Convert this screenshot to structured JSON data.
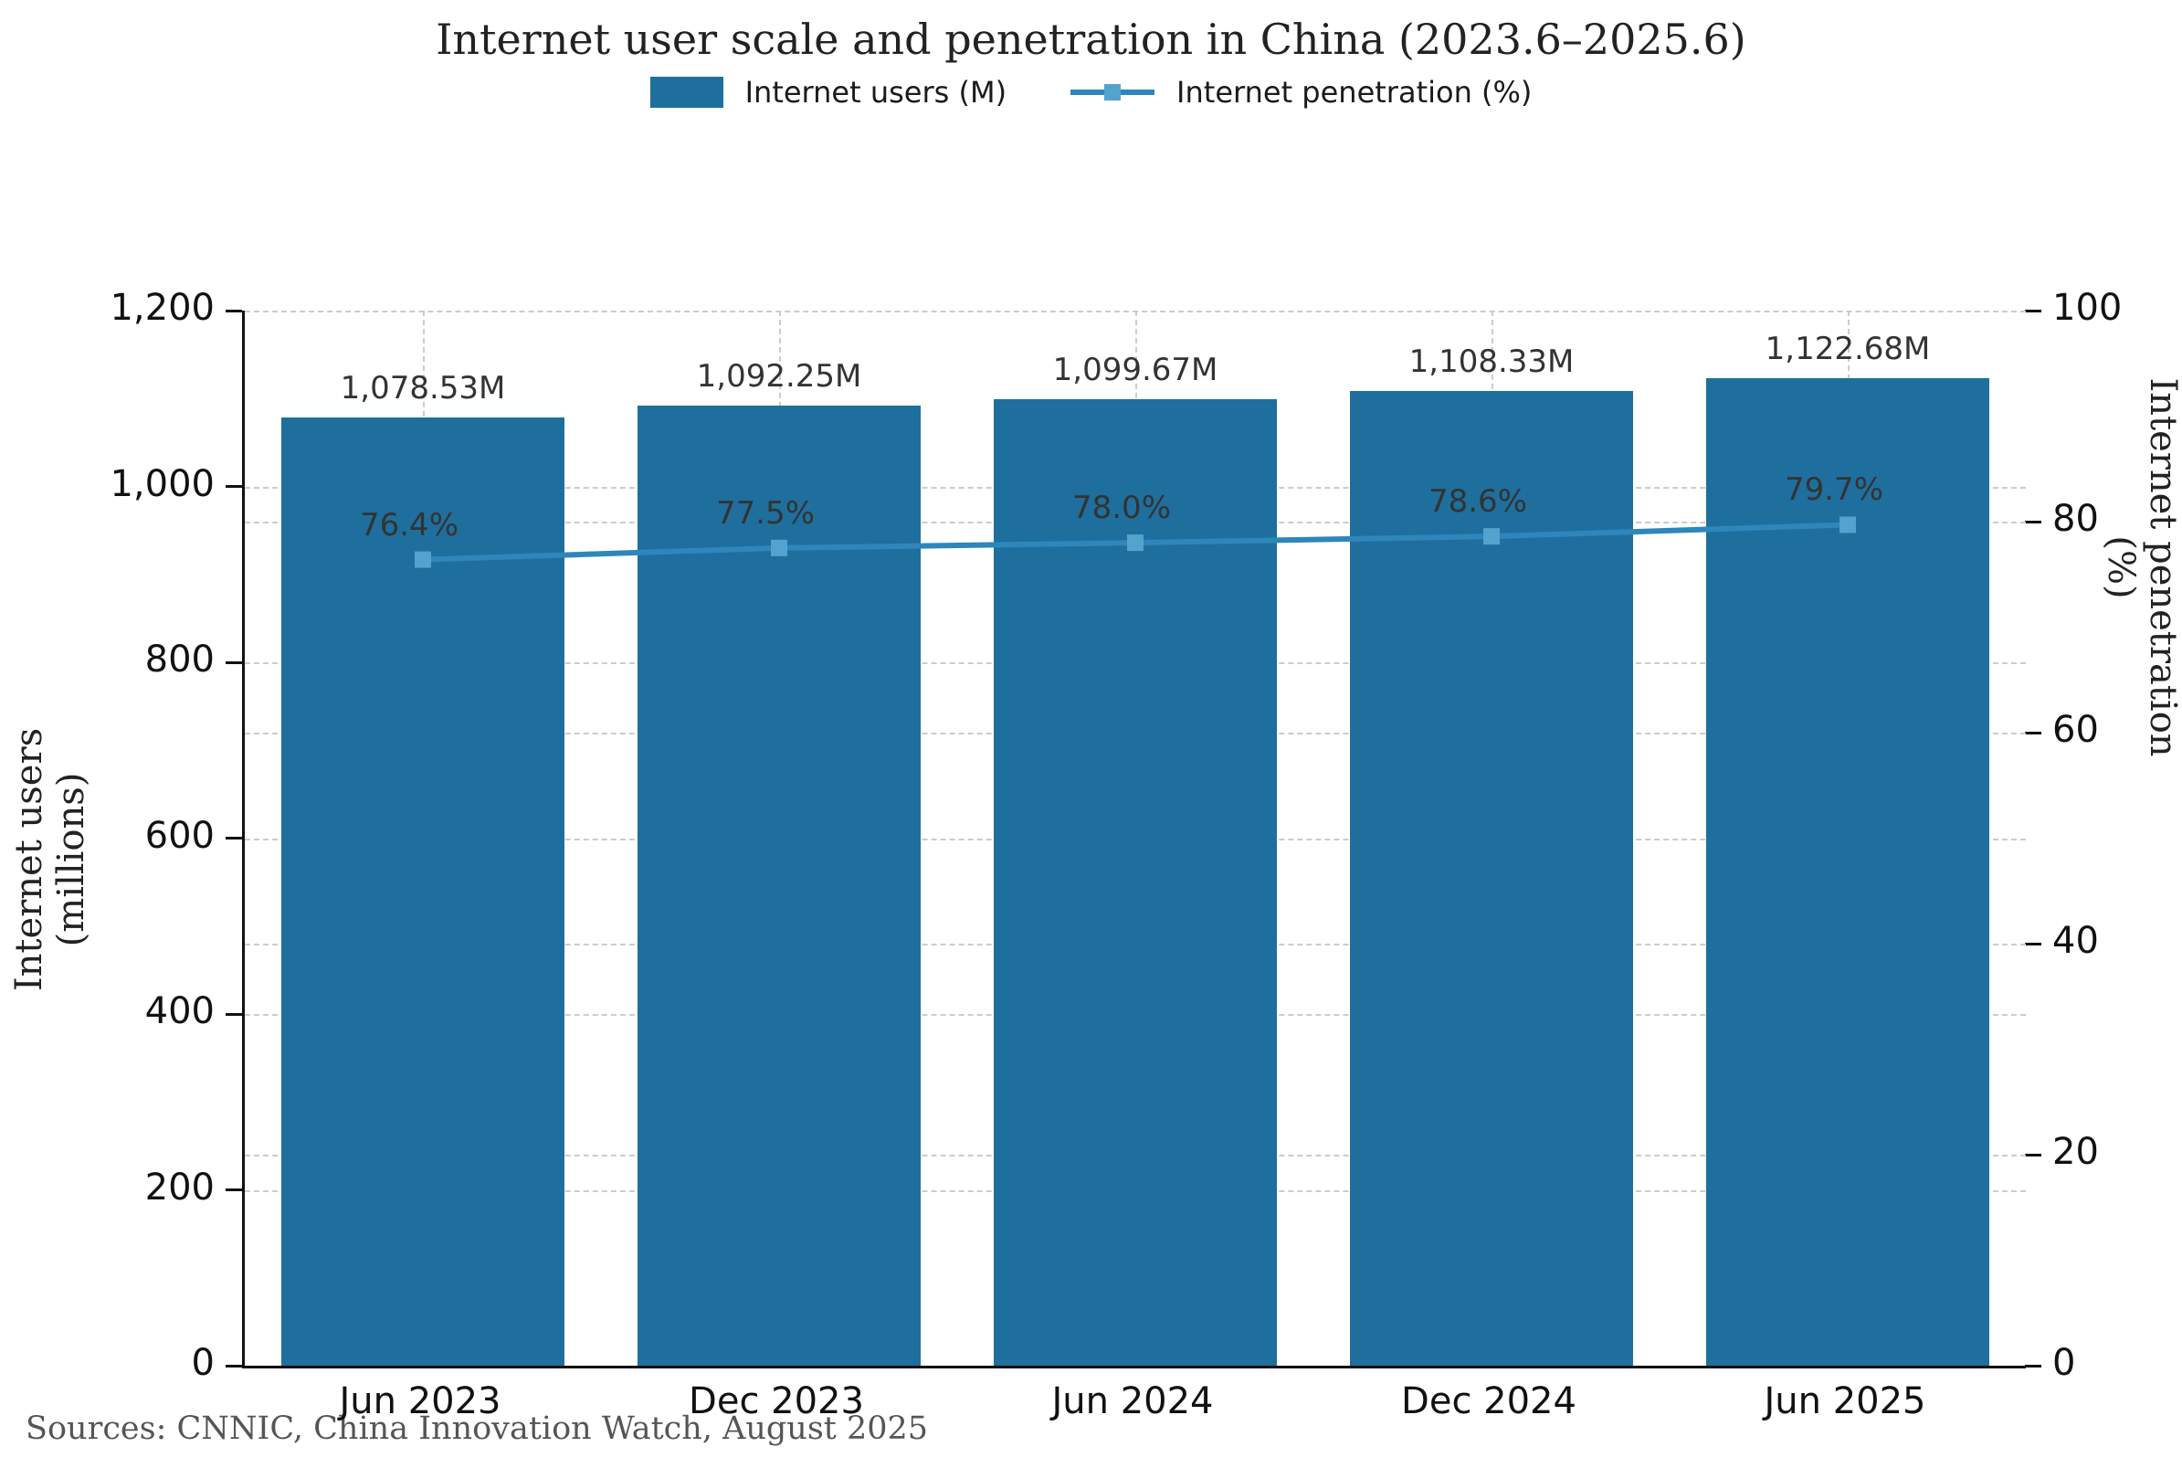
{
  "title": "Internet user scale and penetration in China (2023.6–2025.6)",
  "legend": [
    {
      "label": "Internet users (M)",
      "type": "bar"
    },
    {
      "label": "Internet penetration (%)",
      "type": "line"
    }
  ],
  "colors": {
    "bar": "#1e6f9d",
    "line": "#2e86ba",
    "marker": "#54a3cf",
    "grid": "#cccccc",
    "axis": "#111111",
    "label_text": "#333333",
    "source_text": "#555555"
  },
  "chart_data": {
    "type": "bar",
    "title": "Internet user scale and penetration in China (2023.6–2025.6)",
    "categories": [
      "Jun 2023",
      "Dec 2023",
      "Jun 2024",
      "Dec 2024",
      "Jun 2025"
    ],
    "series": [
      {
        "name": "Internet users (M)",
        "type": "bar",
        "axis": "left",
        "values": [
          1078.53,
          1092.25,
          1099.67,
          1108.33,
          1122.68
        ],
        "labels": [
          "1,078.53M",
          "1,092.25M",
          "1,099.67M",
          "1,108.33M",
          "1,122.68M"
        ]
      },
      {
        "name": "Internet penetration (%)",
        "type": "line",
        "axis": "right",
        "values": [
          76.4,
          77.5,
          78.0,
          78.6,
          79.7
        ],
        "labels": [
          "76.4%",
          "77.5%",
          "78.0%",
          "78.6%",
          "79.7%"
        ]
      }
    ],
    "left_axis": {
      "label": "Internet users (millions)",
      "min": 0,
      "max": 1200,
      "ticks": [
        0,
        200,
        400,
        600,
        800,
        1000,
        1200
      ]
    },
    "right_axis": {
      "label": "Internet penetration (%)",
      "min": 0,
      "max": 100,
      "ticks": [
        0,
        20,
        40,
        60,
        80,
        100
      ]
    },
    "grid": true,
    "legend_position": "top"
  },
  "source": "Sources: CNNIC, China Innovation Watch, August 2025"
}
